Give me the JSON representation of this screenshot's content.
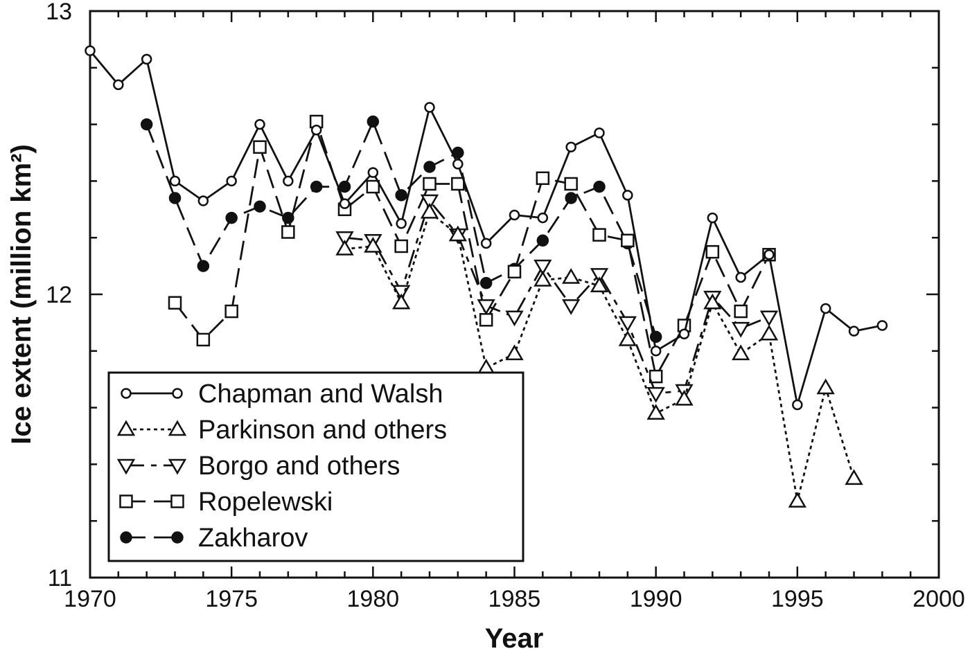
{
  "chart_data": {
    "type": "line",
    "title": "",
    "xlabel": "Year",
    "ylabel": "Ice extent (million km²)",
    "xlim": [
      1970,
      2000
    ],
    "ylim": [
      11,
      13
    ],
    "x_ticks": [
      1970,
      1975,
      1980,
      1985,
      1990,
      1995,
      2000
    ],
    "y_ticks": [
      11,
      12,
      13
    ],
    "grid": false,
    "legend_position": "bottom-left",
    "series": [
      {
        "name": "Chapman and Walsh",
        "marker": "open-circle",
        "line": "solid",
        "points": [
          [
            1970,
            12.86
          ],
          [
            1971,
            12.74
          ],
          [
            1972,
            12.83
          ],
          [
            1973,
            12.4
          ],
          [
            1974,
            12.33
          ],
          [
            1975,
            12.4
          ],
          [
            1976,
            12.6
          ],
          [
            1977,
            12.4
          ],
          [
            1978,
            12.58
          ],
          [
            1979,
            12.32
          ],
          [
            1980,
            12.43
          ],
          [
            1981,
            12.25
          ],
          [
            1982,
            12.66
          ],
          [
            1983,
            12.46
          ],
          [
            1984,
            12.18
          ],
          [
            1985,
            12.28
          ],
          [
            1986,
            12.27
          ],
          [
            1987,
            12.52
          ],
          [
            1988,
            12.57
          ],
          [
            1989,
            12.35
          ],
          [
            1990,
            11.8
          ],
          [
            1991,
            11.86
          ],
          [
            1992,
            12.27
          ],
          [
            1993,
            12.06
          ],
          [
            1994,
            12.14
          ],
          [
            1995,
            11.61
          ],
          [
            1996,
            11.95
          ],
          [
            1997,
            11.87
          ],
          [
            1998,
            11.89
          ]
        ]
      },
      {
        "name": "Parkinson and others",
        "marker": "open-triangle-up",
        "line": "dotted",
        "points": [
          [
            1979,
            12.16
          ],
          [
            1980,
            12.17
          ],
          [
            1981,
            11.97
          ],
          [
            1982,
            12.29
          ],
          [
            1983,
            12.21
          ],
          [
            1984,
            11.74
          ],
          [
            1985,
            11.79
          ],
          [
            1986,
            12.05
          ],
          [
            1987,
            12.06
          ],
          [
            1988,
            12.03
          ],
          [
            1989,
            11.84
          ],
          [
            1990,
            11.58
          ],
          [
            1991,
            11.63
          ],
          [
            1992,
            11.97
          ],
          [
            1993,
            11.79
          ],
          [
            1994,
            11.86
          ],
          [
            1995,
            11.27
          ],
          [
            1996,
            11.67
          ],
          [
            1997,
            11.35
          ]
        ]
      },
      {
        "name": "Borgo and others",
        "marker": "open-triangle-down",
        "line": "dash-dot",
        "points": [
          [
            1979,
            12.2
          ],
          [
            1980,
            12.19
          ],
          [
            1981,
            12.01
          ],
          [
            1982,
            12.33
          ],
          [
            1983,
            12.21
          ],
          [
            1984,
            11.96
          ],
          [
            1985,
            11.92
          ],
          [
            1986,
            12.1
          ],
          [
            1987,
            11.96
          ],
          [
            1988,
            12.07
          ],
          [
            1989,
            11.9
          ],
          [
            1990,
            11.65
          ],
          [
            1991,
            11.66
          ],
          [
            1992,
            11.99
          ],
          [
            1993,
            11.88
          ],
          [
            1994,
            11.92
          ]
        ]
      },
      {
        "name": "Ropelewski",
        "marker": "open-square",
        "line": "long-dash",
        "points": [
          [
            1973,
            11.97
          ],
          [
            1974,
            11.84
          ],
          [
            1975,
            11.94
          ],
          [
            1976,
            12.52
          ],
          [
            1977,
            12.22
          ],
          [
            1978,
            12.61
          ],
          [
            1979,
            12.3
          ],
          [
            1980,
            12.38
          ],
          [
            1981,
            12.17
          ],
          [
            1982,
            12.39
          ],
          [
            1983,
            12.39
          ],
          [
            1984,
            11.91
          ],
          [
            1985,
            12.08
          ],
          [
            1986,
            12.41
          ],
          [
            1987,
            12.39
          ],
          [
            1988,
            12.21
          ],
          [
            1989,
            12.19
          ],
          [
            1990,
            11.71
          ],
          [
            1991,
            11.89
          ],
          [
            1992,
            12.15
          ],
          [
            1993,
            11.94
          ],
          [
            1994,
            12.14
          ]
        ]
      },
      {
        "name": "Zakharov",
        "marker": "filled-circle",
        "line": "long-dash",
        "points": [
          [
            1972,
            12.6
          ],
          [
            1973,
            12.34
          ],
          [
            1974,
            12.1
          ],
          [
            1975,
            12.27
          ],
          [
            1976,
            12.31
          ],
          [
            1977,
            12.27
          ],
          [
            1978,
            12.38
          ],
          [
            1979,
            12.38
          ],
          [
            1980,
            12.61
          ],
          [
            1981,
            12.35
          ],
          [
            1982,
            12.45
          ],
          [
            1983,
            12.5
          ],
          [
            1984,
            12.04
          ],
          [
            1985,
            12.09
          ],
          [
            1986,
            12.19
          ],
          [
            1987,
            12.34
          ],
          [
            1988,
            12.38
          ],
          [
            1989,
            12.18
          ],
          [
            1990,
            11.85
          ]
        ]
      }
    ]
  }
}
